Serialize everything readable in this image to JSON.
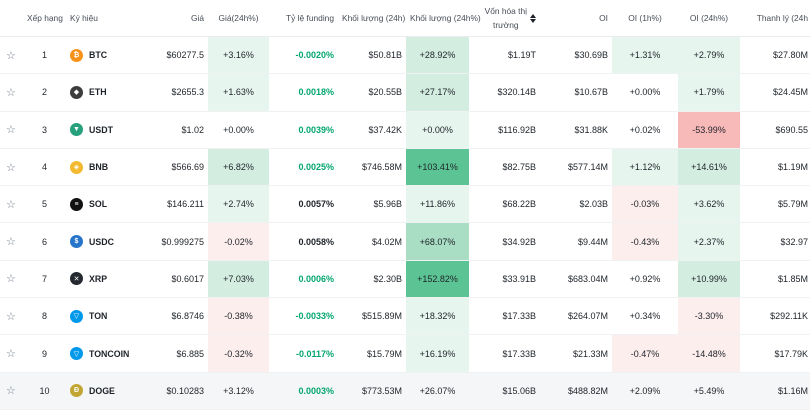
{
  "headers": {
    "rank": "Xếp hạng",
    "symbol": "Ký hiệu",
    "price": "Giá",
    "change24h": "Giá(24h%)",
    "funding": "Tỷ lệ funding",
    "volume": "Khối lượng (24h)",
    "volume_pct": "Khối lượng (24h%)",
    "mcap_line1": "Vốn hóa thị",
    "mcap_line2": "trường",
    "oi": "OI",
    "oi1h": "OI (1h%)",
    "oi24h": "OI (24h%)",
    "liq": "Thanh lý (24h"
  },
  "rows": [
    {
      "rank": "1",
      "symbol": "BTC",
      "icon": "bitcoin-icon",
      "color": "#f7931a",
      "glyph": "₿",
      "price": "$60277.5",
      "change": "+3.16%",
      "funding": "-0.0020%",
      "volume": "$50.81B",
      "volume_pct": "+28.92%",
      "mcap": "$1.19T",
      "oi": "$30.69B",
      "oi1h": "+1.31%",
      "oi24h": "+2.79%",
      "liq": "$27.80M"
    },
    {
      "rank": "2",
      "symbol": "ETH",
      "icon": "ethereum-icon",
      "color": "#3c3c3d",
      "glyph": "◆",
      "price": "$2655.3",
      "change": "+1.63%",
      "funding": "0.0018%",
      "volume": "$20.55B",
      "volume_pct": "+27.17%",
      "mcap": "$320.14B",
      "oi": "$10.67B",
      "oi1h": "+0.00%",
      "oi24h": "+1.79%",
      "liq": "$24.45M"
    },
    {
      "rank": "3",
      "symbol": "USDT",
      "icon": "tether-icon",
      "color": "#26a17b",
      "glyph": "▼",
      "price": "$1.02",
      "change": "+0.00%",
      "funding": "0.0039%",
      "volume": "$37.42K",
      "volume_pct": "+0.00%",
      "mcap": "$116.92B",
      "oi": "$31.88K",
      "oi1h": "+0.02%",
      "oi24h": "-53.99%",
      "liq": "$690.55"
    },
    {
      "rank": "4",
      "symbol": "BNB",
      "icon": "bnb-icon",
      "color": "#f3ba2f",
      "glyph": "◈",
      "price": "$566.69",
      "change": "+6.82%",
      "funding": "0.0025%",
      "volume": "$746.58M",
      "volume_pct": "+103.41%",
      "mcap": "$82.75B",
      "oi": "$577.14M",
      "oi1h": "+1.12%",
      "oi24h": "+14.61%",
      "liq": "$1.19M"
    },
    {
      "rank": "5",
      "symbol": "SOL",
      "icon": "solana-icon",
      "color": "#111111",
      "glyph": "≡",
      "price": "$146.211",
      "change": "+2.74%",
      "funding": "0.0057%",
      "volume": "$5.96B",
      "volume_pct": "+11.86%",
      "mcap": "$68.22B",
      "oi": "$2.03B",
      "oi1h": "-0.03%",
      "oi24h": "+3.62%",
      "liq": "$5.79M"
    },
    {
      "rank": "6",
      "symbol": "USDC",
      "icon": "usdc-icon",
      "color": "#2775ca",
      "glyph": "$",
      "price": "$0.999275",
      "change": "-0.02%",
      "funding": "0.0058%",
      "volume": "$4.02M",
      "volume_pct": "+68.07%",
      "mcap": "$34.92B",
      "oi": "$9.44M",
      "oi1h": "-0.43%",
      "oi24h": "+2.37%",
      "liq": "$32.97"
    },
    {
      "rank": "7",
      "symbol": "XRP",
      "icon": "xrp-icon",
      "color": "#23292f",
      "glyph": "✕",
      "price": "$0.6017",
      "change": "+7.03%",
      "funding": "0.0006%",
      "volume": "$2.30B",
      "volume_pct": "+152.82%",
      "mcap": "$33.91B",
      "oi": "$683.04M",
      "oi1h": "+0.92%",
      "oi24h": "+10.99%",
      "liq": "$1.85M"
    },
    {
      "rank": "8",
      "symbol": "TON",
      "icon": "ton-icon",
      "color": "#0098ea",
      "glyph": "▽",
      "price": "$6.8746",
      "change": "-0.38%",
      "funding": "-0.0033%",
      "volume": "$515.89M",
      "volume_pct": "+18.32%",
      "mcap": "$17.33B",
      "oi": "$264.07M",
      "oi1h": "+0.34%",
      "oi24h": "-3.30%",
      "liq": "$292.11K"
    },
    {
      "rank": "9",
      "symbol": "TONCOIN",
      "icon": "toncoin-icon",
      "color": "#0098ea",
      "glyph": "▽",
      "price": "$6.885",
      "change": "-0.32%",
      "funding": "-0.0117%",
      "volume": "$15.79M",
      "volume_pct": "+16.19%",
      "mcap": "$17.33B",
      "oi": "$21.33M",
      "oi1h": "-0.47%",
      "oi24h": "-14.48%",
      "liq": "$17.79K"
    },
    {
      "rank": "10",
      "symbol": "DOGE",
      "icon": "dogecoin-icon",
      "color": "#c2a633",
      "glyph": "Ð",
      "price": "$0.10283",
      "change": "+3.12%",
      "funding": "0.0003%",
      "volume": "$773.53M",
      "volume_pct": "+26.07%",
      "mcap": "$15.06B",
      "oi": "$488.82M",
      "oi1h": "+2.09%",
      "oi24h": "+5.49%",
      "liq": "$1.16M"
    }
  ]
}
